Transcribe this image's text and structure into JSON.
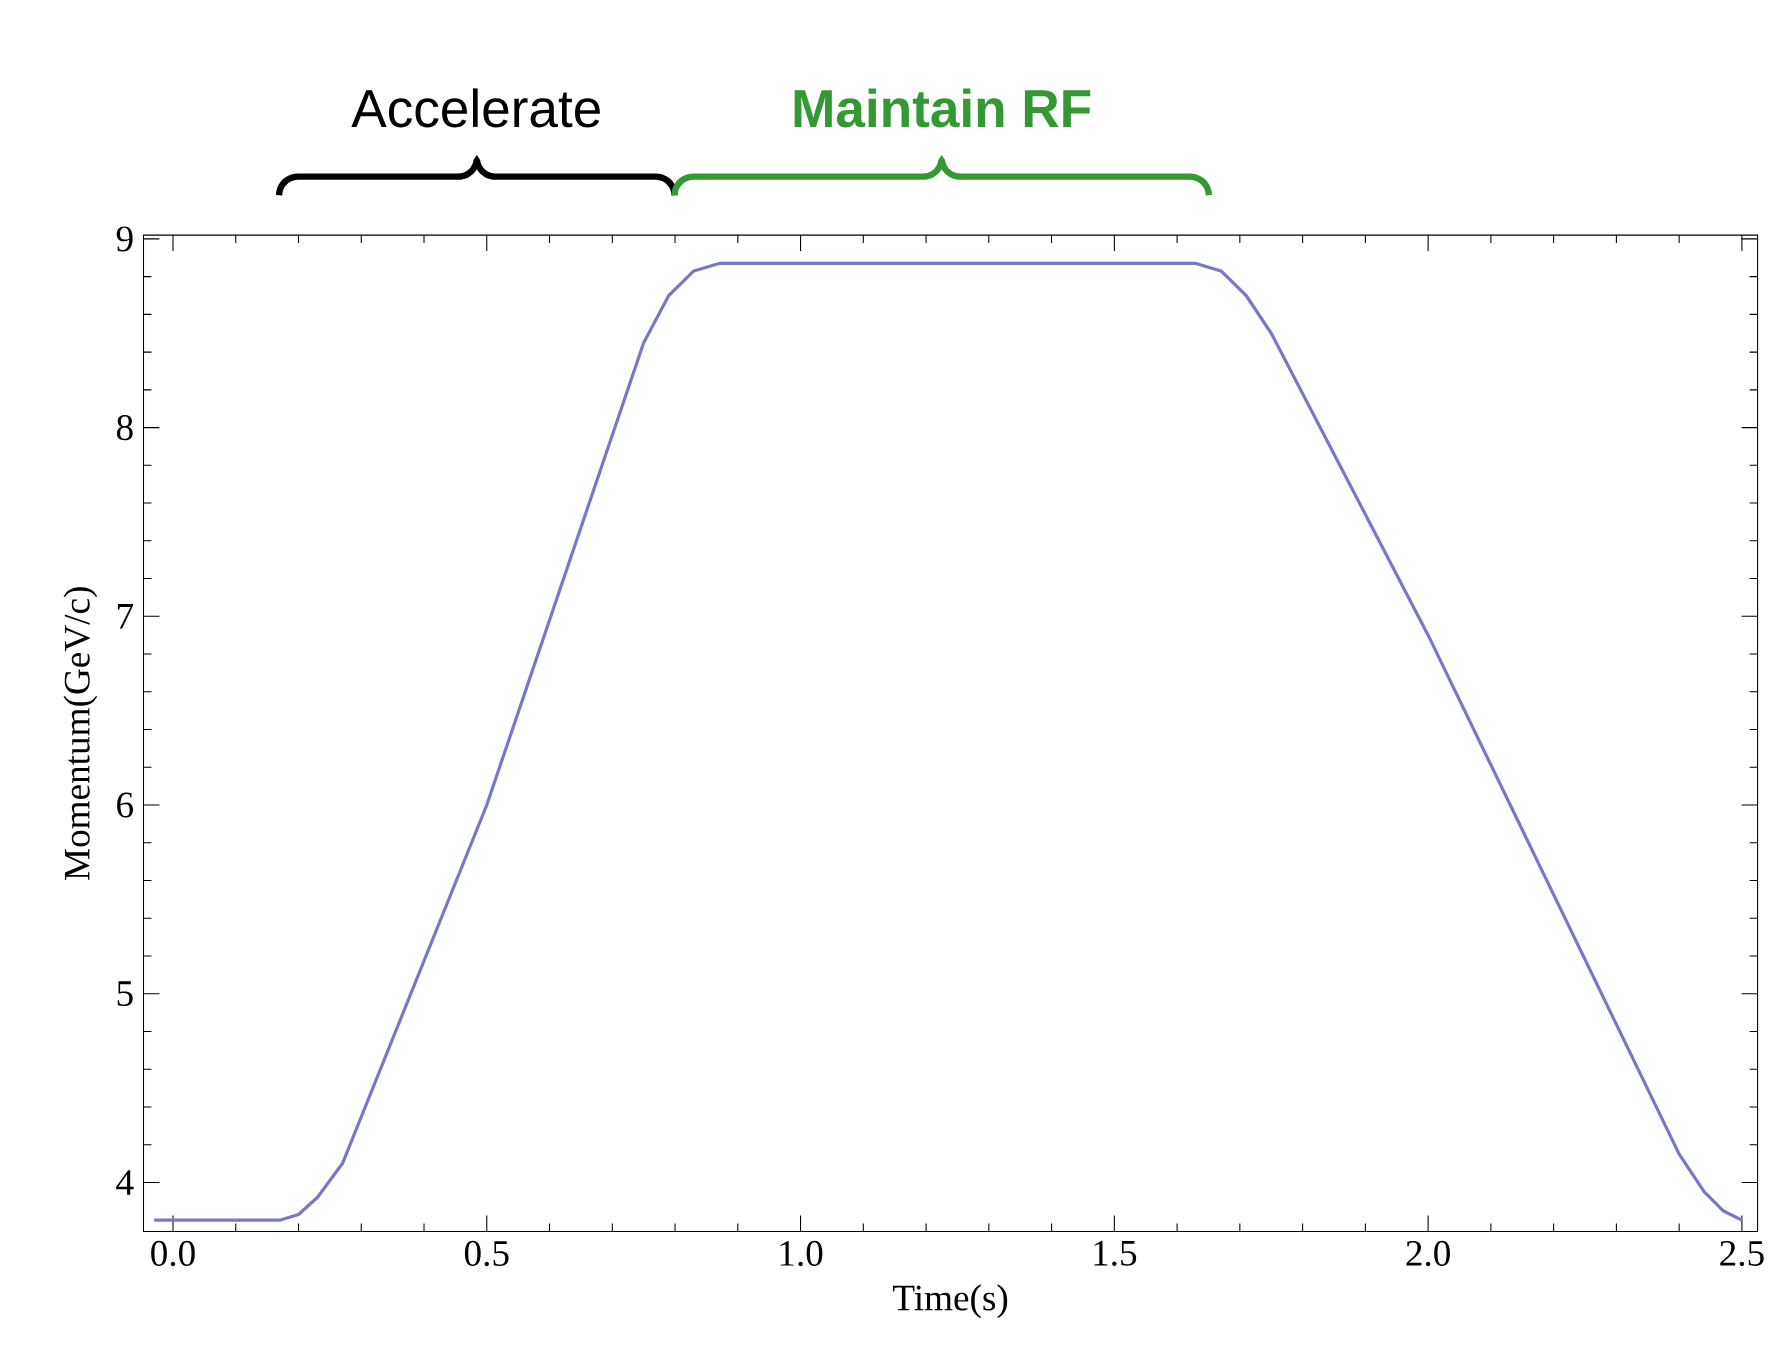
{
  "chart_data": {
    "type": "line",
    "xlabel": "Time(s)",
    "ylabel": "Momentum(GeV/c)",
    "annotations": [
      "Accelerate",
      "Maintain RF"
    ],
    "x": [
      -0.03,
      0.17,
      0.2,
      0.23,
      0.27,
      0.5,
      0.75,
      0.79,
      0.83,
      0.87,
      1.63,
      1.67,
      1.71,
      1.75,
      2.0,
      2.4,
      2.44,
      2.47,
      2.5
    ],
    "series": [
      {
        "color": "#7878c8",
        "values": [
          3.8,
          3.8,
          3.83,
          3.92,
          4.1,
          6.0,
          8.45,
          8.7,
          8.83,
          8.87,
          8.87,
          8.83,
          8.7,
          8.5,
          6.9,
          4.15,
          3.95,
          3.85,
          3.8
        ]
      }
    ],
    "xlim": [
      -0.047,
      2.525
    ],
    "ylim": [
      3.74,
      9.02
    ],
    "xticks": [
      {
        "value": 0,
        "label": "0.0"
      },
      {
        "value": 0.5,
        "label": "0.5"
      },
      {
        "value": 1,
        "label": "1.0"
      },
      {
        "value": 1.5,
        "label": "1.5"
      },
      {
        "value": 2,
        "label": "2.0"
      },
      {
        "value": 2.5,
        "label": "2.5"
      }
    ],
    "yticks": [
      4,
      5,
      6,
      7,
      8,
      9
    ],
    "marker": "none",
    "line_style": "solid"
  }
}
